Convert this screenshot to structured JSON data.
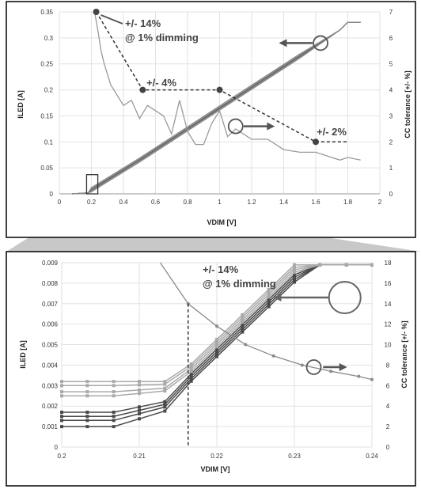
{
  "chart_data": [
    {
      "type": "line",
      "xlabel": "VDIM [V]",
      "ylabel": "ILED [A]",
      "y2label": "CC tolerance [+/- %]",
      "xlim": [
        0,
        2
      ],
      "ylim": [
        0,
        0.35
      ],
      "y2lim": [
        0,
        7
      ],
      "x_ticks": [
        "0",
        "0.2",
        "0.4",
        "0.6",
        "0.8",
        "1",
        "1.2",
        "1.4",
        "1.6",
        "1.8",
        "2"
      ],
      "y_ticks": [
        "0",
        "0.05",
        "0.1",
        "0.15",
        "0.2",
        "0.25",
        "0.3",
        "0.35"
      ],
      "y2_ticks": [
        "0",
        "1",
        "2",
        "3",
        "4",
        "5",
        "6",
        "7"
      ],
      "grid": true,
      "iled_series": {
        "x": [
          0.08,
          0.18,
          0.2,
          0.5,
          1.0,
          1.5,
          1.75,
          1.8,
          1.88
        ],
        "offsets": [
          -0.004,
          -0.002,
          0,
          0.002,
          0.004
        ],
        "y": [
          0.0,
          0.002,
          0.008,
          0.065,
          0.165,
          0.265,
          0.315,
          0.33,
          0.33
        ]
      },
      "tolerance_series": {
        "x": [
          0.22,
          0.24,
          0.26,
          0.28,
          0.3,
          0.32,
          0.35,
          0.4,
          0.45,
          0.5,
          0.55,
          0.6,
          0.65,
          0.7,
          0.75,
          0.8,
          0.85,
          0.9,
          0.95,
          1.0,
          1.05,
          1.1,
          1.2,
          1.3,
          1.4,
          1.5,
          1.6,
          1.7,
          1.75,
          1.8,
          1.88
        ],
        "y": [
          7.0,
          6.3,
          5.5,
          5.0,
          4.6,
          4.2,
          3.9,
          3.4,
          3.6,
          2.9,
          3.4,
          3.2,
          3.0,
          2.3,
          3.6,
          2.4,
          1.9,
          1.9,
          2.7,
          3.2,
          2.2,
          2.5,
          2.1,
          2.1,
          1.7,
          1.6,
          1.6,
          1.4,
          1.3,
          1.4,
          1.3
        ]
      },
      "spec_markers": {
        "x": [
          0.23,
          0.52,
          1.0,
          1.6,
          1.8
        ],
        "y": [
          7,
          4,
          4,
          2,
          2
        ]
      },
      "annotations": [
        "+/- 14%",
        "@ 1% dimming",
        "+/- 4%",
        "+/- 2%"
      ]
    },
    {
      "type": "line",
      "xlabel": "VDIM [V]",
      "ylabel": "ILED [A]",
      "y2label": "CC tolerance [+/- %]",
      "xlim": [
        0.2,
        0.24
      ],
      "ylim": [
        0,
        0.009
      ],
      "y2lim": [
        0,
        18
      ],
      "x_ticks": [
        "0.2",
        "0.21",
        "0.22",
        "0.23",
        "0.24"
      ],
      "y_ticks": [
        "0",
        "0.001",
        "0.002",
        "0.003",
        "0.004",
        "0.005",
        "0.006",
        "0.007",
        "0.008",
        "0.009"
      ],
      "y2_ticks": [
        "0",
        "2",
        "4",
        "6",
        "8",
        "10",
        "12",
        "14",
        "16",
        "18"
      ],
      "grid": true,
      "iled_series_base": [
        {
          "plateau": 0.001,
          "dark": true
        },
        {
          "plateau": 0.0013,
          "dark": true
        },
        {
          "plateau": 0.0015,
          "dark": true
        },
        {
          "plateau": 0.0017,
          "dark": true
        },
        {
          "plateau": 0.0025,
          "dark": false
        },
        {
          "plateau": 0.0027,
          "dark": false
        },
        {
          "plateau": 0.003,
          "dark": false
        },
        {
          "plateau": 0.0032,
          "dark": false
        }
      ],
      "iled_x": [
        0.2,
        0.2033,
        0.2067,
        0.21,
        0.2133,
        0.2167,
        0.22,
        0.2233,
        0.2267,
        0.23,
        0.2333,
        0.2367,
        0.24
      ],
      "tolerance_series": {
        "x": [
          0.2127,
          0.2163,
          0.22,
          0.2237,
          0.2273,
          0.231,
          0.2347,
          0.2383,
          0.24
        ],
        "y": [
          18,
          14,
          11.8,
          10,
          8.9,
          8,
          7.4,
          6.9,
          6.6
        ]
      },
      "annotations": [
        "+/- 14%",
        "@ 1% dimming"
      ]
    }
  ]
}
